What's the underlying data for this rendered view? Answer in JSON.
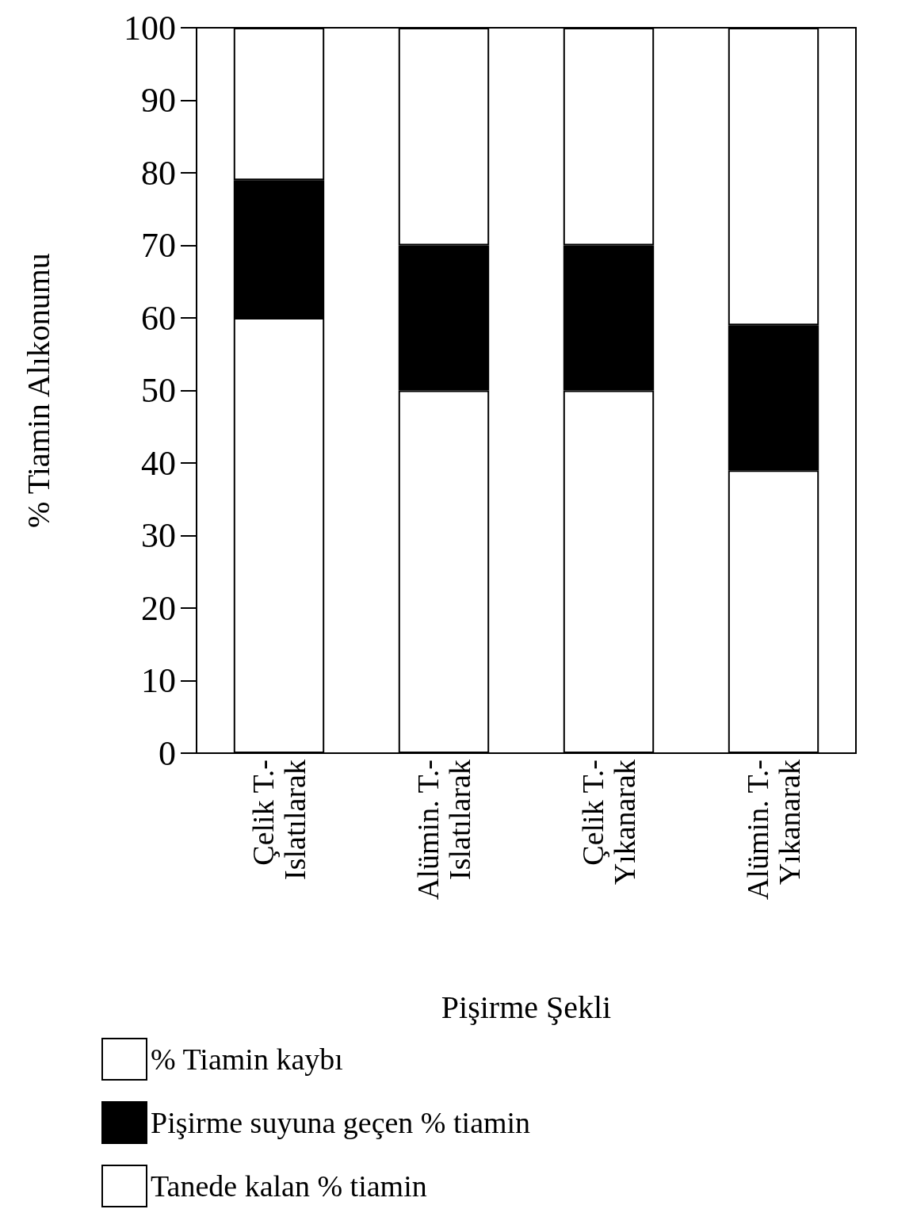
{
  "chart_data": {
    "type": "bar",
    "stacked": true,
    "xlabel": "Pişirme Şekli",
    "ylabel": "% Tiamin Alıkonumu",
    "categories": [
      "Çelik T.-\nIslatılarak",
      "Alümin. T.-\nIslatılarak",
      "Çelik T.-\nYıkanarak",
      "Alümin. T.-\nYıkanarak"
    ],
    "series": [
      {
        "name": "Tanede kalan % tiamin",
        "color": "#ffffff",
        "values": [
          60,
          50,
          50,
          39
        ]
      },
      {
        "name": "Pişirme suyuna geçen % tiamin",
        "color": "#000000",
        "values": [
          19,
          20,
          20,
          20
        ]
      },
      {
        "name": "% Tiamin kaybı",
        "color": "#ffffff",
        "values": [
          21,
          30,
          30,
          41
        ]
      }
    ],
    "ylim": [
      0,
      100
    ],
    "yticks": [
      0,
      10,
      20,
      30,
      40,
      50,
      60,
      70,
      80,
      90,
      100
    ],
    "grid": false,
    "legend": "bottom"
  }
}
